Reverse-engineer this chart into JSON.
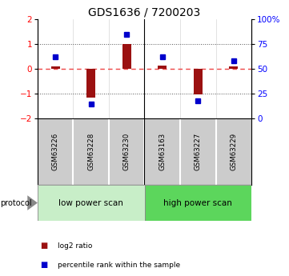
{
  "title": "GDS1636 / 7200203",
  "samples": [
    "GSM63226",
    "GSM63228",
    "GSM63230",
    "GSM63163",
    "GSM63227",
    "GSM63229"
  ],
  "log2_ratio": [
    0.12,
    -1.15,
    1.02,
    0.15,
    -1.02,
    0.1
  ],
  "percentile_rank": [
    62,
    15,
    85,
    62,
    18,
    58
  ],
  "group1_samples": [
    0,
    1,
    2
  ],
  "group2_samples": [
    3,
    4,
    5
  ],
  "group1_label": "low power scan",
  "group2_label": "high power scan",
  "group1_color": "#c8eec8",
  "group2_color": "#5cd65c",
  "ylim": [
    -2,
    2
  ],
  "yticks_left": [
    -2,
    -1,
    0,
    1,
    2
  ],
  "yticks_right_labels": [
    "0",
    "25",
    "50",
    "75",
    "100%"
  ],
  "bar_color": "#9b1111",
  "dot_color": "#0000cc",
  "zero_line_color": "#ee4444",
  "dotted_line_color": "#555555",
  "background_color": "#ffffff",
  "sample_label_bg": "#cccccc",
  "legend_red_label": "log2 ratio",
  "legend_blue_label": "percentile rank within the sample",
  "protocol_label": "protocol"
}
